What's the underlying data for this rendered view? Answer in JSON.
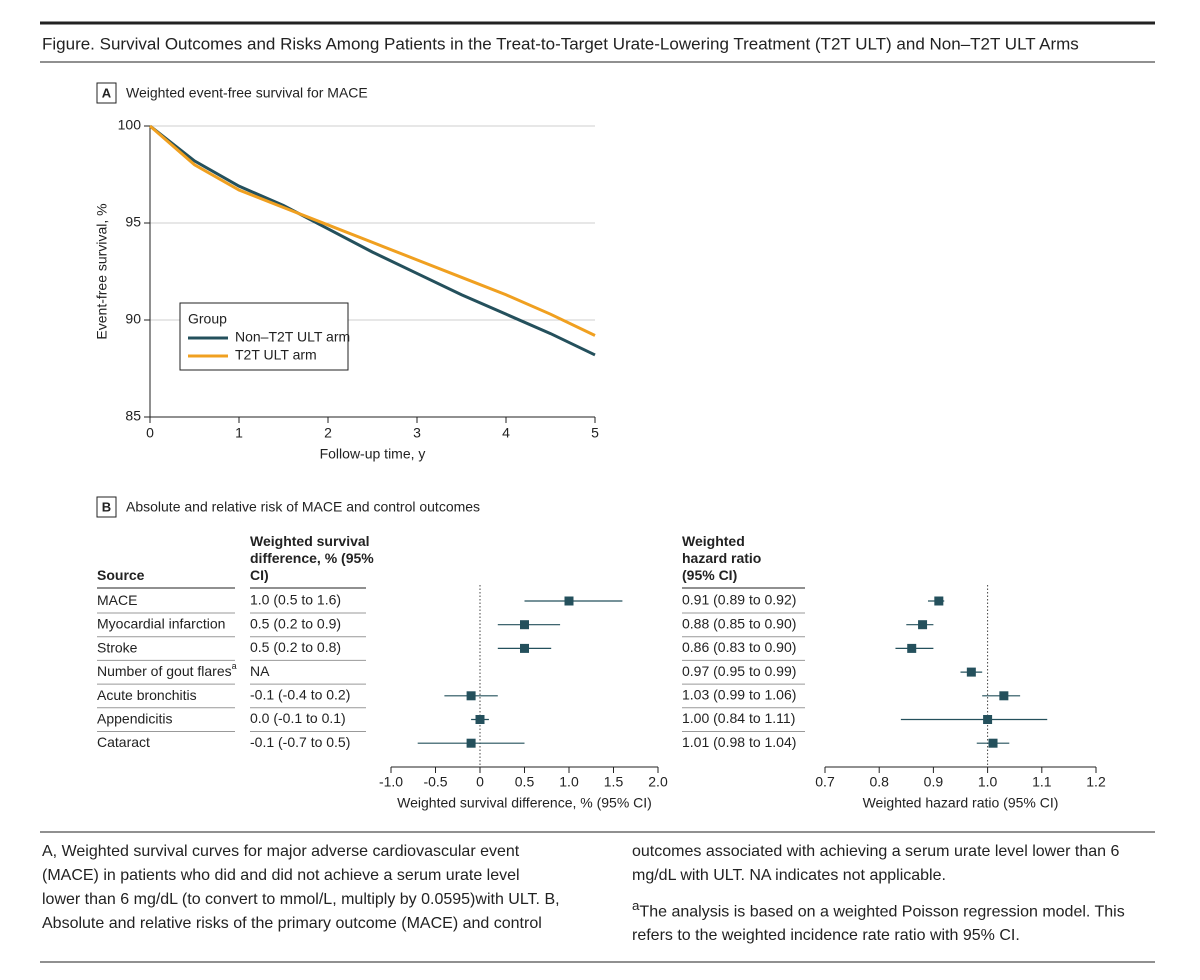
{
  "figure_title": "Figure. Survival Outcomes and Risks Among Patients in the Treat-to-Target Urate-Lowering Treatment (T2T ULT) and Non–T2T ULT Arms",
  "chart_data": [
    {
      "type": "line",
      "panel": "A",
      "title": "Weighted event-free survival for MACE",
      "x": [
        0,
        0.5,
        1,
        1.5,
        2,
        2.5,
        3,
        3.5,
        4,
        4.5,
        5
      ],
      "series": [
        {
          "name": "Non–T2T ULT arm",
          "color": "#24505c",
          "values": [
            100,
            98.2,
            96.9,
            95.9,
            94.7,
            93.5,
            92.4,
            91.3,
            90.3,
            89.3,
            88.2
          ]
        },
        {
          "name": "T2T ULT arm",
          "color": "#f0a020",
          "values": [
            100,
            98.0,
            96.7,
            95.8,
            94.9,
            94.0,
            93.1,
            92.2,
            91.3,
            90.3,
            89.2
          ]
        }
      ],
      "xlim": [
        0,
        5
      ],
      "ylim": [
        85,
        100
      ],
      "xticks": [
        0,
        1,
        2,
        3,
        4,
        5
      ],
      "yticks": [
        85,
        90,
        95,
        100
      ],
      "grid": true,
      "x_label": "Follow-up time, y",
      "y_label": "Event-free survival, %",
      "legend_title": "Group",
      "legend": "lower-left"
    },
    {
      "type": "forest",
      "panel": "B",
      "title": "Absolute and relative risk of MACE and control outcomes",
      "row_header": "Source",
      "categories": [
        "MACE",
        "Myocardial infarction",
        "Stroke",
        "Number of gout flares",
        "Acute bronchitis",
        "Appendicitis",
        "Cataract"
      ],
      "superscripts": [
        null,
        null,
        null,
        "a",
        null,
        null,
        null
      ],
      "column_header": "Weighted survival difference, % (95% CI)",
      "values": [
        1.0,
        0.5,
        0.5,
        null,
        -0.1,
        0.0,
        -0.1
      ],
      "lower": [
        0.5,
        0.2,
        0.2,
        null,
        -0.4,
        -0.1,
        -0.7
      ],
      "upper": [
        1.6,
        0.9,
        0.8,
        null,
        0.2,
        0.1,
        0.5
      ],
      "value_labels": [
        "1.0 (0.5 to 1.6)",
        "0.5 (0.2 to 0.9)",
        "0.5 (0.2 to 0.8)",
        "NA",
        "-0.1 (-0.4 to 0.2)",
        "0.0 (-0.1 to 0.1)",
        "-0.1 (-0.7 to 0.5)"
      ],
      "xlim": [
        -1,
        2
      ],
      "xticks": [
        {
          "value": -1,
          "label": "-1.0"
        },
        -0.5,
        0,
        0.5,
        {
          "value": 1,
          "label": "1.0"
        },
        1.5,
        {
          "value": 2,
          "label": "2.0"
        }
      ],
      "x_label": "Weighted survival difference, % (95% CI)",
      "reference": 0,
      "color": "#24505c"
    },
    {
      "type": "forest",
      "column_header": "Weighted hazard ratio (95% CI)",
      "values": [
        0.91,
        0.88,
        0.86,
        0.97,
        1.03,
        1.0,
        1.01
      ],
      "lower": [
        0.89,
        0.85,
        0.83,
        0.95,
        0.99,
        0.84,
        0.98
      ],
      "upper": [
        0.92,
        0.9,
        0.9,
        0.99,
        1.06,
        1.11,
        1.04
      ],
      "value_labels": [
        "0.91 (0.89 to 0.92)",
        "0.88 (0.85 to 0.90)",
        "0.86 (0.83 to 0.90)",
        "0.97 (0.95 to 0.99)",
        "1.03 (0.99 to 1.06)",
        "1.00 (0.84 to 1.11)",
        "1.01 (0.98 to 1.04)"
      ],
      "xlim": [
        0.7,
        1.2
      ],
      "xticks": [
        0.7,
        0.8,
        0.9,
        {
          "value": 1,
          "label": "1.0"
        },
        1.1,
        1.2
      ],
      "x_label": "Weighted hazard ratio (95% CI)",
      "reference": 1,
      "color": "#24505c"
    }
  ],
  "caption": "A, Weighted survival curves for major adverse cardiovascular event (MACE) in patients who did and did not achieve a serum urate level lower than 6 mg/dL (to convert to mmol/L, multiply by 0.0595)with ULT. B, Absolute and relative risks of the primary outcome (MACE) and control outcomes associated with achieving a serum urate level lower than 6 mg/dL with ULT. NA indicates not applicable.",
  "footnote": {
    "mark": "a",
    "text": "The analysis is based on a weighted Poisson regression model. This refers to the weighted incidence rate ratio with 95% CI."
  }
}
